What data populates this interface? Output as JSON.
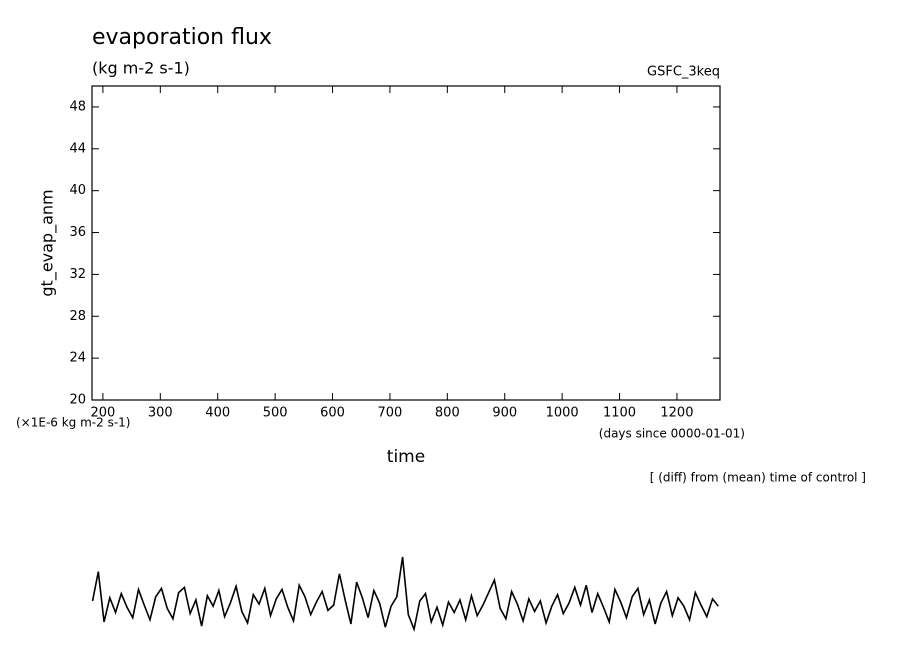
{
  "chart_data": {
    "type": "line",
    "title": "evaporation flux",
    "subtitle": "(kg m-2 s-1)",
    "annotation": "GSFC_3keq",
    "ylabel": "gt_evap_anm",
    "yunits": "(×1E-6 kg m-2 s-1)",
    "xlabel": "time",
    "xunits": "(days since 0000-01-01)",
    "note": "[ (diff) from (mean) time of control ]",
    "xlim": [
      181,
      1275
    ],
    "ylim": [
      20,
      50
    ],
    "xticks": [
      200,
      300,
      400,
      500,
      600,
      700,
      800,
      900,
      1000,
      1100,
      1200
    ],
    "yticks": [
      20,
      24,
      28,
      32,
      36,
      40,
      44,
      48
    ],
    "color": "#000000",
    "x": [
      182,
      192,
      202,
      212,
      222,
      232,
      242,
      252,
      262,
      272,
      282,
      292,
      302,
      312,
      322,
      332,
      342,
      352,
      362,
      372,
      382,
      392,
      402,
      412,
      422,
      432,
      442,
      452,
      462,
      472,
      482,
      492,
      502,
      512,
      522,
      532,
      542,
      552,
      562,
      572,
      582,
      592,
      602,
      612,
      622,
      632,
      642,
      652,
      662,
      672,
      682,
      692,
      702,
      712,
      722,
      732,
      742,
      752,
      762,
      772,
      782,
      792,
      802,
      812,
      822,
      832,
      842,
      852,
      862,
      872,
      882,
      892,
      902,
      912,
      922,
      932,
      942,
      952,
      962,
      972,
      982,
      992,
      1002,
      1012,
      1022,
      1032,
      1042,
      1052,
      1062,
      1072,
      1082,
      1092,
      1102,
      1112,
      1122,
      1132,
      1142,
      1152,
      1162,
      1172,
      1182,
      1192,
      1202,
      1212,
      1222,
      1232,
      1242,
      1252,
      1262,
      1272
    ],
    "values": [
      0.8,
      3.6,
      -1.2,
      1.1,
      -0.3,
      1.5,
      0.2,
      -0.8,
      1.9,
      0.4,
      -1.0,
      1.2,
      2.0,
      0.1,
      -0.9,
      1.6,
      2.1,
      -0.4,
      0.9,
      -1.6,
      1.3,
      0.3,
      1.8,
      -0.7,
      0.6,
      2.2,
      -0.2,
      -1.3,
      1.4,
      0.5,
      2.0,
      -0.6,
      1.0,
      1.9,
      0.2,
      -1.1,
      2.3,
      1.2,
      -0.5,
      0.7,
      1.7,
      -0.1,
      0.4,
      3.4,
      0.9,
      -1.4,
      2.6,
      1.1,
      -0.8,
      1.8,
      0.6,
      -1.7,
      0.3,
      1.2,
      5.0,
      -0.5,
      -1.9,
      0.8,
      1.5,
      -1.2,
      0.2,
      -1.5,
      0.7,
      -0.3,
      0.9,
      -1.0,
      1.3,
      -0.6,
      0.4,
      1.6,
      2.8,
      0.1,
      -0.9,
      1.7,
      0.5,
      -1.1,
      1.0,
      -0.2,
      0.8,
      -1.3,
      0.3,
      1.4,
      -0.4,
      0.6,
      2.1,
      0.4,
      2.3,
      -0.3,
      1.5,
      0.2,
      -1.2,
      1.9,
      0.7,
      -0.8,
      1.2,
      2.0,
      -0.5,
      0.9,
      -1.4,
      0.6,
      1.7,
      -0.6,
      1.1,
      0.3,
      -1.0,
      1.6,
      0.4,
      -0.7,
      1.0,
      0.3
    ]
  }
}
